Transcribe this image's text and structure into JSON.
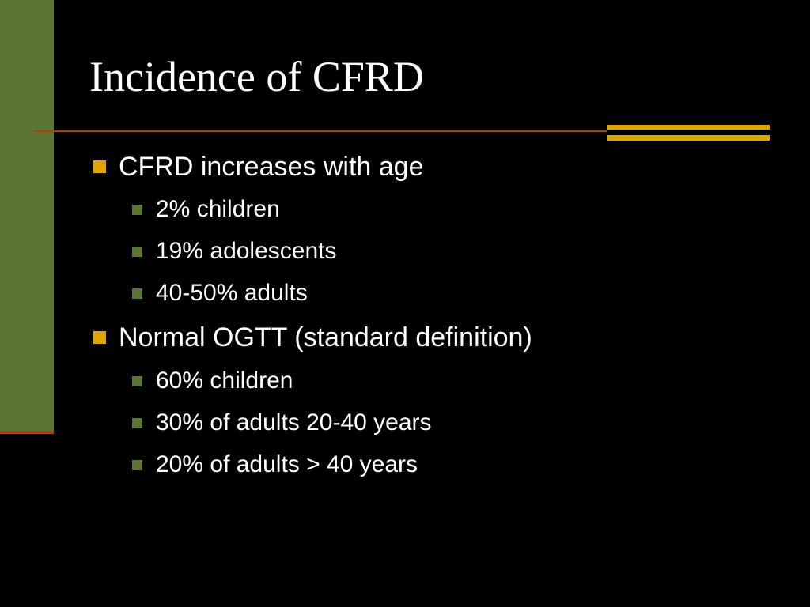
{
  "slide": {
    "title": "Incidence of CFRD",
    "colors": {
      "background": "#000000",
      "side_bar": "#5b7633",
      "rule_line": "#a8420e",
      "accent_bars": "#e0a400",
      "level1_bullet": "#e0a400",
      "level2_bullet": "#5b7633",
      "text": "#ffffff"
    },
    "bullets": [
      {
        "text": "CFRD increases with age",
        "sub": [
          "2% children",
          "19% adolescents",
          "40-50% adults"
        ]
      },
      {
        "text": "Normal OGTT (standard definition)",
        "sub": [
          "60% children",
          "30% of adults 20-40 years",
          "20% of adults > 40 years"
        ]
      }
    ]
  }
}
